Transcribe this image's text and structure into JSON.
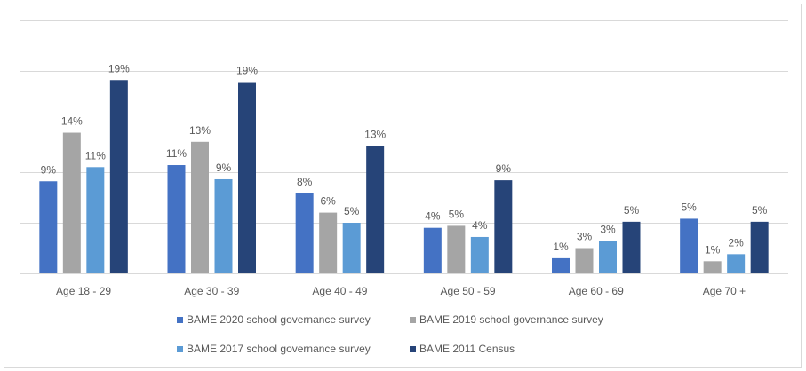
{
  "chart_data": {
    "type": "bar",
    "title": "",
    "xlabel": "",
    "ylabel": "",
    "ylim": [
      0,
      25
    ],
    "y_gridline_step": 5,
    "grid": true,
    "y_axis_labels_visible": false,
    "legend_position": "bottom",
    "categories": [
      "Age 18 - 29",
      "Age 30 - 39",
      "Age 40 - 49",
      "Age 50 - 59",
      "Age 60 - 69",
      "Age 70 +"
    ],
    "series": [
      {
        "name": "BAME 2020 school governance survey",
        "color": "#4472C4",
        "values": [
          9.1,
          10.7,
          7.9,
          4.5,
          1.5,
          5.4
        ],
        "labels": [
          "9%",
          "11%",
          "8%",
          "4%",
          "1%",
          "5%"
        ]
      },
      {
        "name": "BAME 2019 school governance survey",
        "color": "#A5A5A5",
        "values": [
          13.9,
          13.0,
          6.0,
          4.7,
          2.5,
          1.2
        ],
        "labels": [
          "14%",
          "13%",
          "6%",
          "5%",
          "3%",
          "1%"
        ]
      },
      {
        "name": "BAME 2017 school governance survey",
        "color": "#5B9BD5",
        "values": [
          10.5,
          9.3,
          5.0,
          3.6,
          3.2,
          1.9
        ],
        "labels": [
          "11%",
          "9%",
          "5%",
          "4%",
          "3%",
          "2%"
        ]
      },
      {
        "name": "BAME 2011 Census",
        "color": "#264478",
        "values": [
          19.1,
          18.9,
          12.6,
          9.2,
          5.1,
          5.1
        ],
        "labels": [
          "19%",
          "19%",
          "13%",
          "9%",
          "5%",
          "5%"
        ]
      }
    ]
  }
}
